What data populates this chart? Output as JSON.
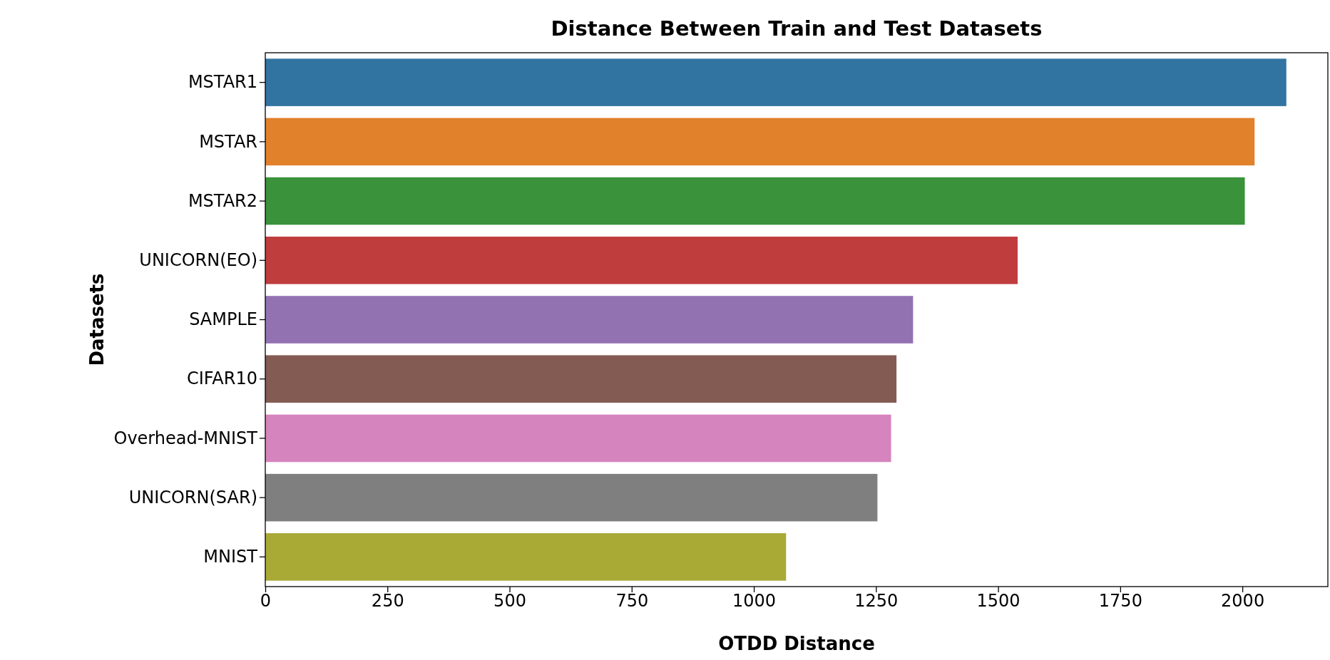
{
  "chart_data": {
    "type": "bar",
    "orientation": "horizontal",
    "title": "Distance Between Train and Test Datasets",
    "xlabel": "OTDD Distance",
    "ylabel": "Datasets",
    "categories": [
      "MSTAR1",
      "MSTAR",
      "MSTAR2",
      "UNICORN(EO)",
      "SAMPLE",
      "CIFAR10",
      "Overhead-MNIST",
      "UNICORN(SAR)",
      "MNIST"
    ],
    "values": [
      2090,
      2025,
      2005,
      1540,
      1326,
      1292,
      1281,
      1253,
      1066
    ],
    "colors": [
      "#3274a1",
      "#e1812c",
      "#3a923a",
      "#c03d3e",
      "#9372b2",
      "#845b53",
      "#d684bd",
      "#7f7f7f",
      "#a9aa35"
    ],
    "xlim": [
      0,
      2175
    ],
    "xticks": [
      0,
      250,
      500,
      750,
      1000,
      1250,
      1500,
      1750,
      2000
    ]
  }
}
